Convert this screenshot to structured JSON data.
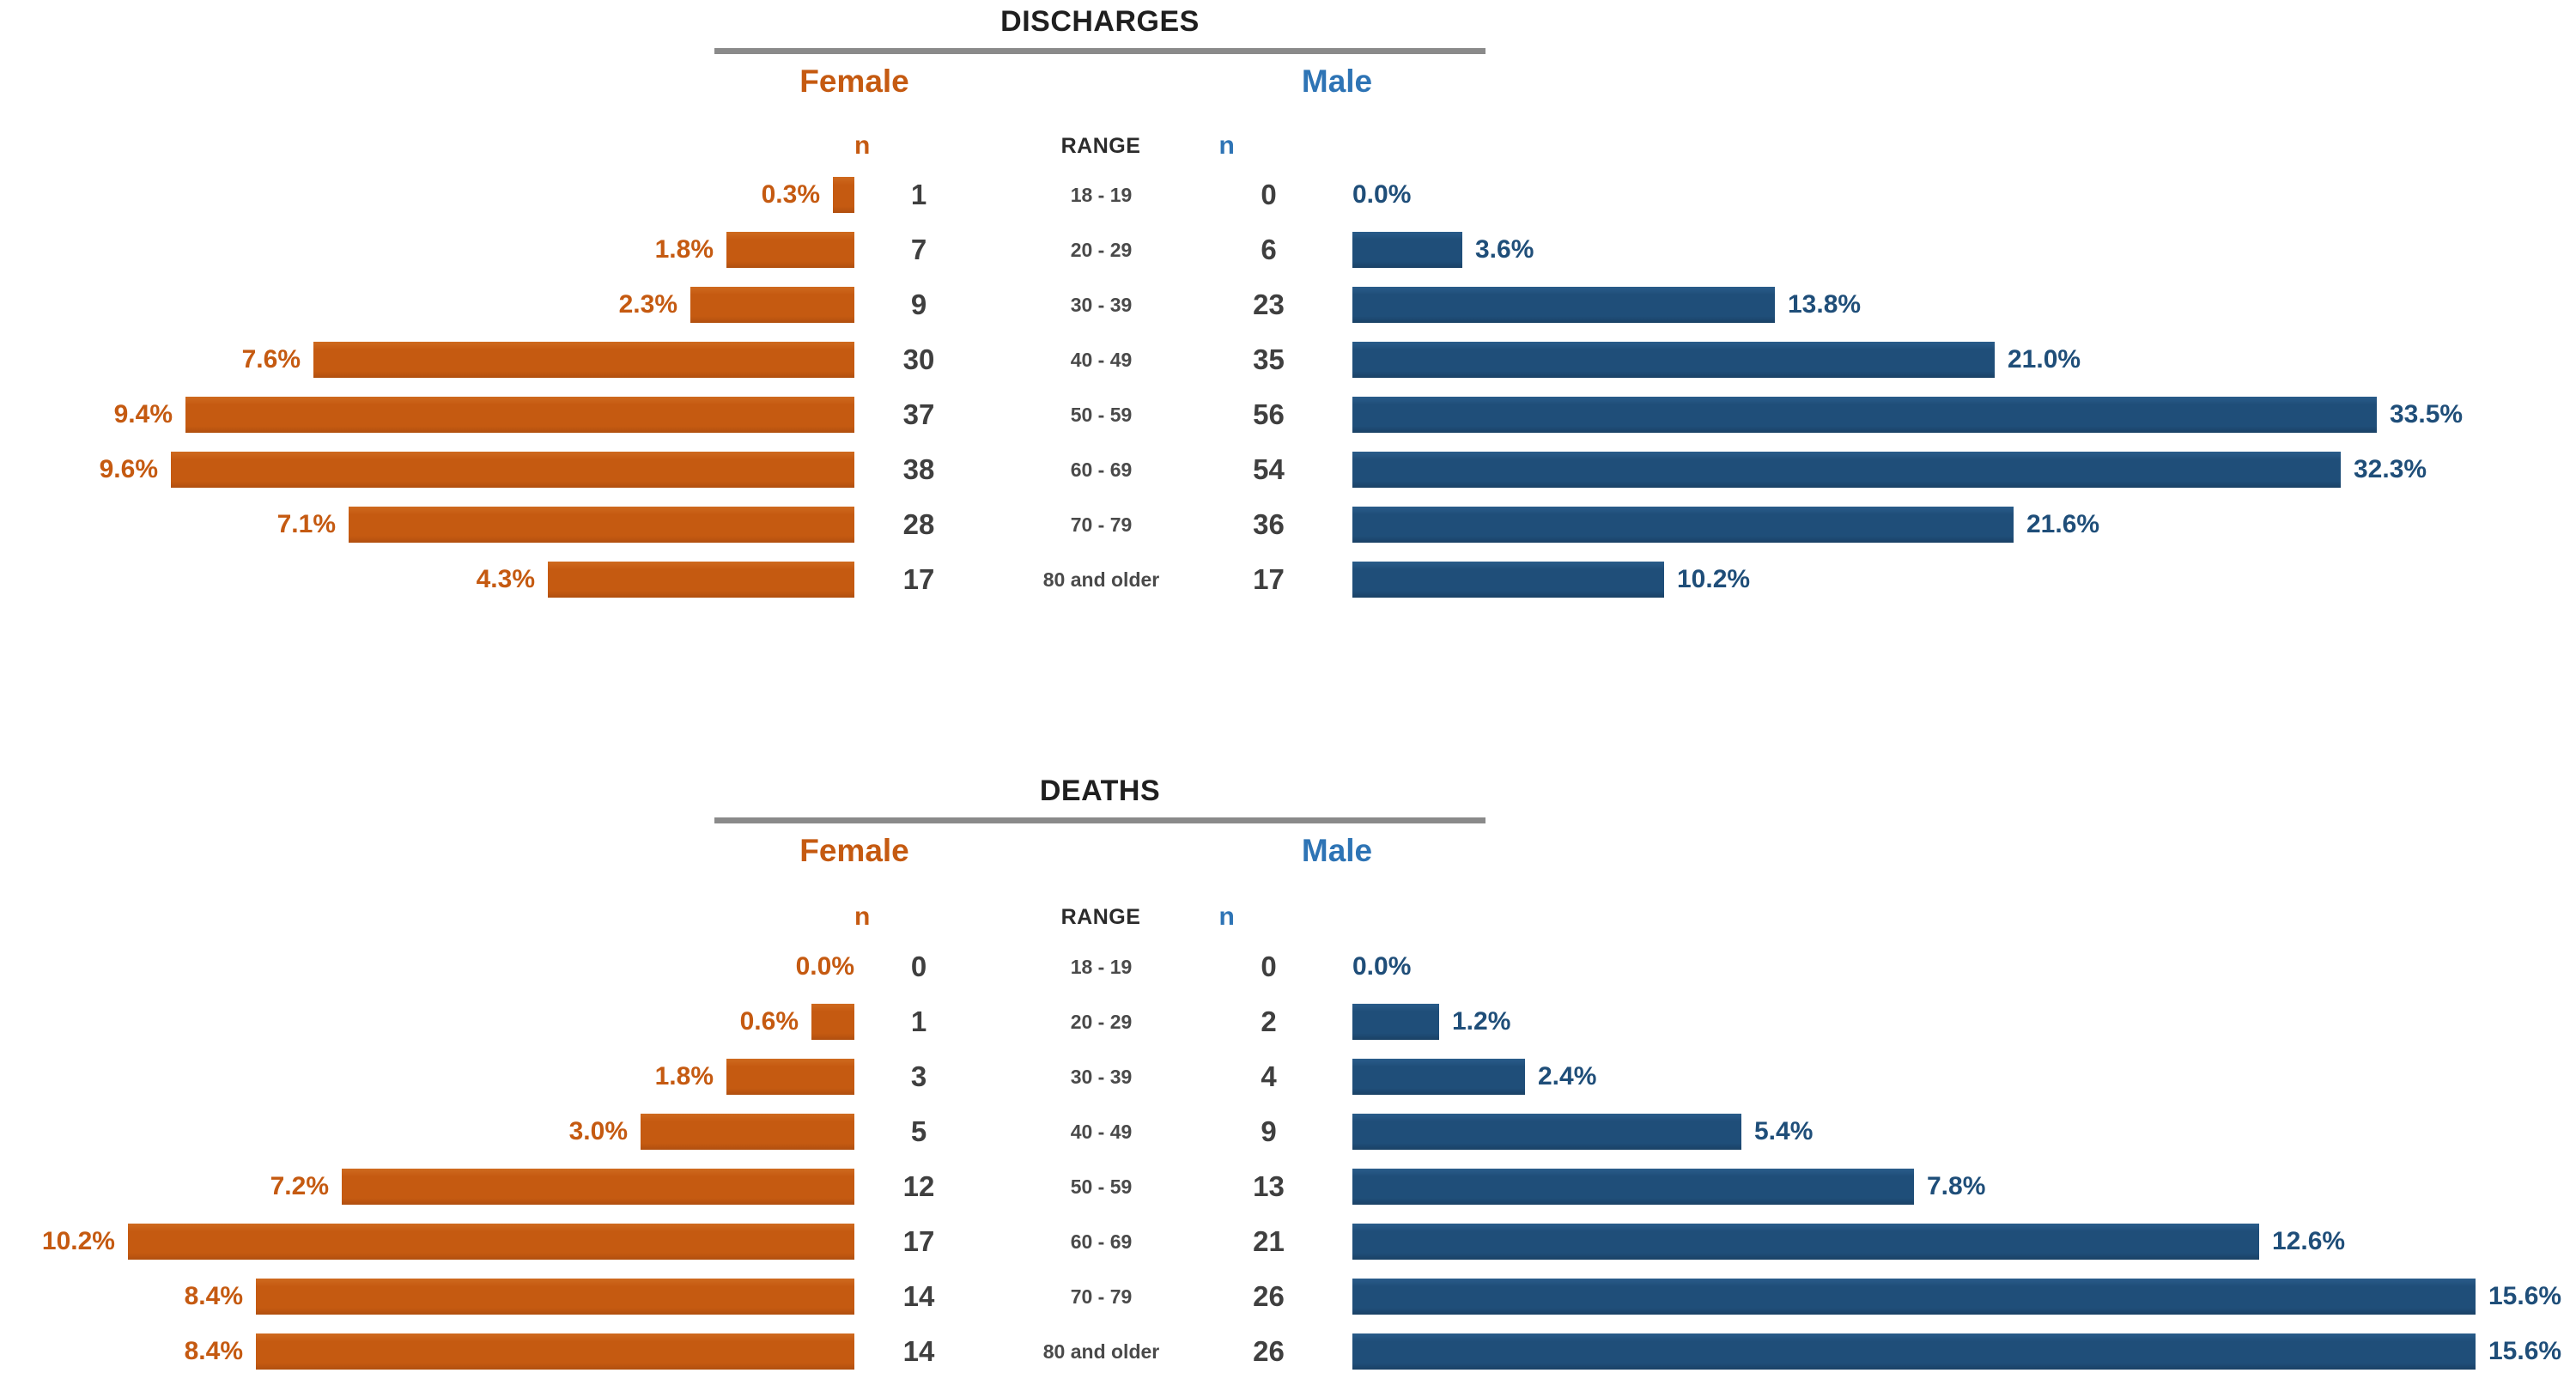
{
  "page": {
    "background": "#ffffff"
  },
  "colors": {
    "female_accent": "#c55a11",
    "male_bar": "#1f4e79",
    "male_header": "#2e74b5",
    "count_text": "#3f3f3f",
    "range_text": "#4a4a4a",
    "title_text": "#1f1f1f",
    "divider": "#8a8a8a"
  },
  "sections": [
    {
      "title": "DISCHARGES",
      "female_label": "Female",
      "male_label": "Male",
      "female_n_header": "n",
      "range_header": "RANGE",
      "male_n_header": "n",
      "female_axis_max": 12,
      "male_axis_max": 40,
      "rows": [
        {
          "range": "18 - 19",
          "female_pct": "0.3%",
          "female_pct_value": 0.3,
          "female_n": "1",
          "male_n": "0",
          "male_pct": "0.0%",
          "male_pct_value": 0.0
        },
        {
          "range": "20 - 29",
          "female_pct": "1.8%",
          "female_pct_value": 1.8,
          "female_n": "7",
          "male_n": "6",
          "male_pct": "3.6%",
          "male_pct_value": 3.6
        },
        {
          "range": "30 - 39",
          "female_pct": "2.3%",
          "female_pct_value": 2.3,
          "female_n": "9",
          "male_n": "23",
          "male_pct": "13.8%",
          "male_pct_value": 13.8
        },
        {
          "range": "40 - 49",
          "female_pct": "7.6%",
          "female_pct_value": 7.6,
          "female_n": "30",
          "male_n": "35",
          "male_pct": "21.0%",
          "male_pct_value": 21.0
        },
        {
          "range": "50 - 59",
          "female_pct": "9.4%",
          "female_pct_value": 9.4,
          "female_n": "37",
          "male_n": "56",
          "male_pct": "33.5%",
          "male_pct_value": 33.5
        },
        {
          "range": "60 - 69",
          "female_pct": "9.6%",
          "female_pct_value": 9.6,
          "female_n": "38",
          "male_n": "54",
          "male_pct": "32.3%",
          "male_pct_value": 32.3
        },
        {
          "range": "70 - 79",
          "female_pct": "7.1%",
          "female_pct_value": 7.1,
          "female_n": "28",
          "male_n": "36",
          "male_pct": "21.6%",
          "male_pct_value": 21.6
        },
        {
          "range": "80 and older",
          "female_pct": "4.3%",
          "female_pct_value": 4.3,
          "female_n": "17",
          "male_n": "17",
          "male_pct": "10.2%",
          "male_pct_value": 10.2
        }
      ]
    },
    {
      "title": "DEATHS",
      "female_label": "Female",
      "male_label": "Male",
      "female_n_header": "n",
      "range_header": "RANGE",
      "male_n_header": "n",
      "female_axis_max": 12,
      "male_axis_max": 17,
      "rows": [
        {
          "range": "18 - 19",
          "female_pct": "0.0%",
          "female_pct_value": 0.0,
          "female_n": "0",
          "male_n": "0",
          "male_pct": "0.0%",
          "male_pct_value": 0.0
        },
        {
          "range": "20 - 29",
          "female_pct": "0.6%",
          "female_pct_value": 0.6,
          "female_n": "1",
          "male_n": "2",
          "male_pct": "1.2%",
          "male_pct_value": 1.2
        },
        {
          "range": "30 - 39",
          "female_pct": "1.8%",
          "female_pct_value": 1.8,
          "female_n": "3",
          "male_n": "4",
          "male_pct": "2.4%",
          "male_pct_value": 2.4
        },
        {
          "range": "40 - 49",
          "female_pct": "3.0%",
          "female_pct_value": 3.0,
          "female_n": "5",
          "male_n": "9",
          "male_pct": "5.4%",
          "male_pct_value": 5.4
        },
        {
          "range": "50 - 59",
          "female_pct": "7.2%",
          "female_pct_value": 7.2,
          "female_n": "12",
          "male_n": "13",
          "male_pct": "7.8%",
          "male_pct_value": 7.8
        },
        {
          "range": "60 - 69",
          "female_pct": "10.2%",
          "female_pct_value": 10.2,
          "female_n": "17",
          "male_n": "21",
          "male_pct": "12.6%",
          "male_pct_value": 12.6
        },
        {
          "range": "70 - 79",
          "female_pct": "8.4%",
          "female_pct_value": 8.4,
          "female_n": "14",
          "male_n": "26",
          "male_pct": "15.6%",
          "male_pct_value": 15.6
        },
        {
          "range": "80 and older",
          "female_pct": "8.4%",
          "female_pct_value": 8.4,
          "female_n": "14",
          "male_n": "26",
          "male_pct": "15.6%",
          "male_pct_value": 15.6
        }
      ]
    }
  ],
  "chart_data": [
    {
      "type": "bar",
      "subtype": "population-pyramid",
      "title": "DISCHARGES",
      "categories": [
        "18 - 19",
        "20 - 29",
        "30 - 39",
        "40 - 49",
        "50 - 59",
        "60 - 69",
        "70 - 79",
        "80 and older"
      ],
      "series": [
        {
          "name": "Female %",
          "values": [
            0.3,
            1.8,
            2.3,
            7.6,
            9.4,
            9.6,
            7.1,
            4.3
          ]
        },
        {
          "name": "Female n",
          "values": [
            1,
            7,
            9,
            30,
            37,
            38,
            28,
            17
          ]
        },
        {
          "name": "Male n",
          "values": [
            0,
            6,
            23,
            35,
            56,
            54,
            36,
            17
          ]
        },
        {
          "name": "Male %",
          "values": [
            0.0,
            3.6,
            13.8,
            21.0,
            33.5,
            32.3,
            21.6,
            10.2
          ]
        }
      ],
      "xlabel": "RANGE",
      "ylabel": "",
      "female_axis_range": [
        0,
        12
      ],
      "male_axis_range": [
        0,
        40
      ],
      "grid": false,
      "legend_position": "top",
      "orientation": "horizontal-butterfly"
    },
    {
      "type": "bar",
      "subtype": "population-pyramid",
      "title": "DEATHS",
      "categories": [
        "18 - 19",
        "20 - 29",
        "30 - 39",
        "40 - 49",
        "50 - 59",
        "60 - 69",
        "70 - 79",
        "80 and older"
      ],
      "series": [
        {
          "name": "Female %",
          "values": [
            0.0,
            0.6,
            1.8,
            3.0,
            7.2,
            10.2,
            8.4,
            8.4
          ]
        },
        {
          "name": "Female n",
          "values": [
            0,
            1,
            3,
            5,
            12,
            17,
            14,
            14
          ]
        },
        {
          "name": "Male n",
          "values": [
            0,
            2,
            4,
            9,
            13,
            21,
            26,
            26
          ]
        },
        {
          "name": "Male %",
          "values": [
            0.0,
            1.2,
            2.4,
            5.4,
            7.8,
            12.6,
            15.6,
            15.6
          ]
        }
      ],
      "xlabel": "RANGE",
      "ylabel": "",
      "female_axis_range": [
        0,
        12
      ],
      "male_axis_range": [
        0,
        17
      ],
      "grid": false,
      "legend_position": "top",
      "orientation": "horizontal-butterfly"
    }
  ]
}
